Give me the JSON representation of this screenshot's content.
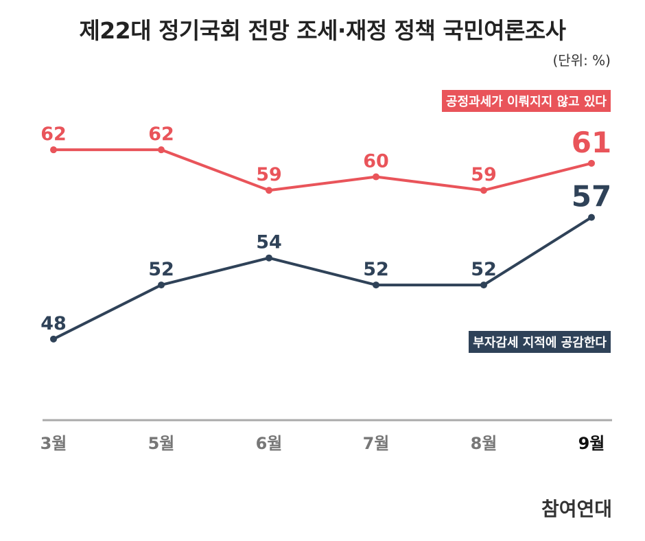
{
  "title": "제22대 정기국회 전망 조세·재정 정책 국민여론조사",
  "unit": "(단위: %)",
  "brand": "참여연대",
  "colors": {
    "red": "#e9545a",
    "navy": "#2f4258",
    "axis": "#aaaaaa",
    "tick": "#777777",
    "tick_last": "#111111"
  },
  "chart_data": {
    "type": "line",
    "categories": [
      "3월",
      "5월",
      "6월",
      "7월",
      "8월",
      "9월"
    ],
    "series": [
      {
        "name": "공정과세가 이뤄지지 않고 있다",
        "values": [
          62,
          62,
          59,
          60,
          59,
          61
        ]
      },
      {
        "name": "부자감세 지적에 공감한다",
        "values": [
          48,
          52,
          54,
          52,
          52,
          57
        ]
      }
    ],
    "ylim": [
      42,
      68
    ],
    "grid": false,
    "legend_position": "right"
  }
}
